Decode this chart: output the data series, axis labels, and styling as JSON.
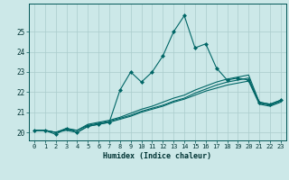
{
  "xlabel": "Humidex (Indice chaleur)",
  "background_color": "#cce8e8",
  "grid_color": "#aacccc",
  "line_color": "#006666",
  "x_values": [
    0,
    1,
    2,
    3,
    4,
    5,
    6,
    7,
    8,
    9,
    10,
    11,
    12,
    13,
    14,
    15,
    16,
    17,
    18,
    19,
    20,
    21,
    22,
    23
  ],
  "series": [
    [
      20.1,
      20.1,
      19.9,
      20.2,
      20.0,
      20.3,
      20.4,
      20.5,
      22.1,
      23.0,
      22.5,
      23.0,
      23.8,
      25.0,
      25.8,
      24.2,
      24.4,
      23.2,
      22.6,
      22.7,
      22.6,
      21.5,
      21.4,
      21.6
    ],
    [
      20.1,
      20.1,
      20.0,
      20.2,
      20.1,
      20.4,
      20.5,
      20.6,
      20.75,
      20.95,
      21.15,
      21.3,
      21.5,
      21.7,
      21.85,
      22.1,
      22.3,
      22.5,
      22.65,
      22.75,
      22.85,
      21.5,
      21.4,
      21.6
    ],
    [
      20.1,
      20.1,
      20.0,
      20.15,
      20.1,
      20.35,
      20.45,
      20.55,
      20.7,
      20.85,
      21.05,
      21.2,
      21.35,
      21.55,
      21.7,
      21.95,
      22.15,
      22.35,
      22.5,
      22.6,
      22.7,
      21.45,
      21.35,
      21.55
    ],
    [
      20.1,
      20.1,
      20.0,
      20.1,
      20.0,
      20.3,
      20.4,
      20.5,
      20.65,
      20.8,
      21.0,
      21.15,
      21.3,
      21.5,
      21.65,
      21.85,
      22.05,
      22.2,
      22.35,
      22.45,
      22.55,
      21.4,
      21.3,
      21.5
    ]
  ],
  "ylim": [
    19.6,
    26.4
  ],
  "yticks": [
    20,
    21,
    22,
    23,
    24,
    25
  ],
  "xtick_labels": [
    "0",
    "1",
    "2",
    "3",
    "4",
    "5",
    "6",
    "7",
    "8",
    "9",
    "10",
    "11",
    "12",
    "13",
    "14",
    "15",
    "16",
    "17",
    "18",
    "19",
    "20",
    "21",
    "22",
    "23"
  ],
  "marker": "D",
  "markersize": 2.0,
  "linewidth": 0.8
}
